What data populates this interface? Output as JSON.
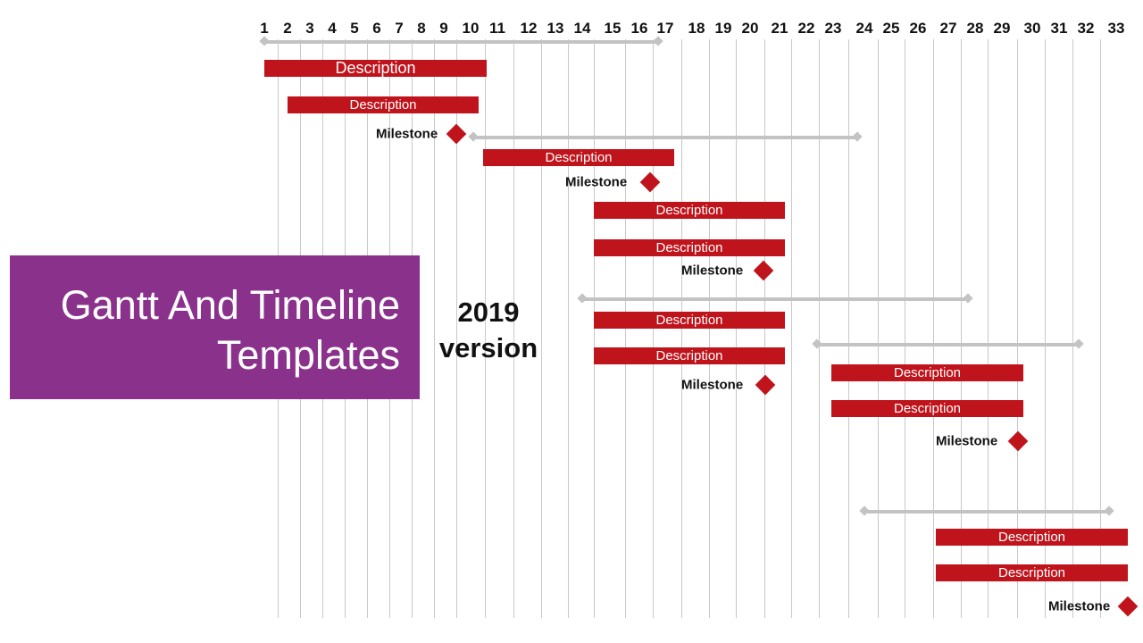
{
  "title": "Gantt And Timeline Templates",
  "version_label": "2019 version",
  "colors": {
    "bar": "#c0141c",
    "span": "#c3c3c3",
    "grid": "#c8c8c8",
    "title_bg": "#8a318c",
    "title_text": "#ffffff"
  },
  "timeline": {
    "days": [
      "1",
      "2",
      "3",
      "4",
      "5",
      "6",
      "7",
      "8",
      "9",
      "10",
      "11",
      "12",
      "13",
      "14",
      "15",
      "16",
      "17",
      "18",
      "19",
      "20",
      "21",
      "22",
      "23",
      "24",
      "25",
      "26",
      "27",
      "28",
      "29",
      "30",
      "31",
      "32",
      "33"
    ],
    "spans": [
      {
        "start": 1,
        "end": 17
      },
      {
        "start": 10.1,
        "end": 24
      },
      {
        "start": 14,
        "end": 28
      },
      {
        "start": 22.4,
        "end": 32
      },
      {
        "start": 24,
        "end": 33
      }
    ],
    "bars": [
      {
        "label": "Description",
        "start": 1,
        "end": 11,
        "big": true
      },
      {
        "label": "Description",
        "start": 2,
        "end": 10.5
      },
      {
        "label": "Description",
        "start": 11,
        "end": 18
      },
      {
        "label": "Description",
        "start": 15,
        "end": 22
      },
      {
        "label": "Description",
        "start": 15,
        "end": 22
      },
      {
        "label": "Description",
        "start": 15,
        "end": 22
      },
      {
        "label": "Description",
        "start": 15,
        "end": 22
      },
      {
        "label": "Description",
        "start": 23,
        "end": 30
      },
      {
        "label": "Description",
        "start": 23,
        "end": 30
      },
      {
        "label": "Description",
        "start": 27,
        "end": 33.5
      },
      {
        "label": "Description",
        "start": 27,
        "end": 33.5
      }
    ],
    "milestones": [
      {
        "label": "Milestone",
        "day": 9.5
      },
      {
        "label": "Milestone",
        "day": 16.5
      },
      {
        "label": "Milestone",
        "day": 20.5
      },
      {
        "label": "Milestone",
        "day": 20.6
      },
      {
        "label": "Milestone",
        "day": 29.6
      },
      {
        "label": "Milestone",
        "day": 33.5
      }
    ]
  }
}
